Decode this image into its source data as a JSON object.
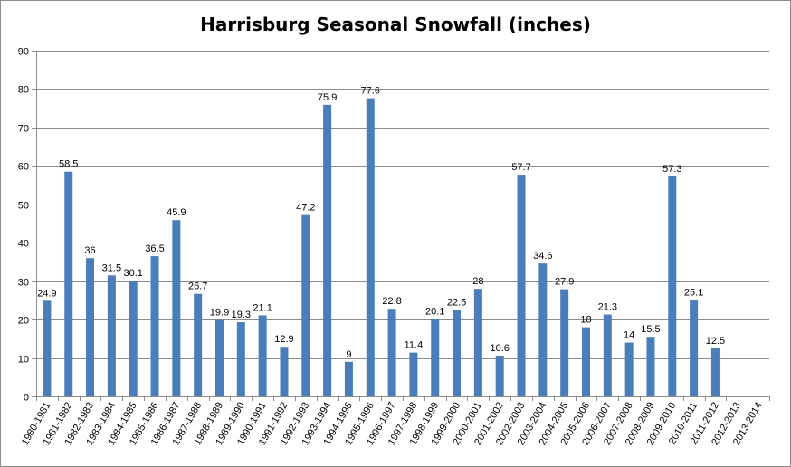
{
  "chart_data": {
    "type": "bar",
    "title": "Harrisburg Seasonal Snowfall (inches)",
    "xlabel": "",
    "ylabel": "",
    "ylim": [
      0,
      90
    ],
    "yticks": [
      0,
      10,
      20,
      30,
      40,
      50,
      60,
      70,
      80,
      90
    ],
    "grid": true,
    "legend": "none",
    "bar_color": "#4a7ebb",
    "categories": [
      "1980-1981",
      "1981-1982",
      "1982-1983",
      "1983-1984",
      "1984-1985",
      "1985-1986",
      "1986-1987",
      "1987-1988",
      "1988-1989",
      "1989-1990",
      "1990-1991",
      "1991-1992",
      "1992-1993",
      "1993-1994",
      "1994-1995",
      "1995-1996",
      "1996-1997",
      "1997-1998",
      "1998-1999",
      "1999-2000",
      "2000-2001",
      "2001-2002",
      "2002-2003",
      "2003-2004",
      "2004-2005",
      "2005-2006",
      "2006-2007",
      "2007-2008",
      "2008-2009",
      "2009-2010",
      "2010-2011",
      "2011-2012",
      "2012-2013",
      "2013-2014"
    ],
    "values": [
      24.9,
      58.5,
      36,
      31.5,
      30.1,
      36.5,
      45.9,
      26.7,
      19.9,
      19.3,
      21.1,
      12.9,
      47.2,
      75.9,
      9,
      77.6,
      22.8,
      11.4,
      20.1,
      22.5,
      28,
      10.6,
      57.7,
      34.6,
      27.9,
      18,
      21.3,
      14,
      15.5,
      57.3,
      25.1,
      12.5,
      null,
      null
    ],
    "labels": [
      "24.9",
      "58.5",
      "36",
      "31.5",
      "30.1",
      "36.5",
      "45.9",
      "26.7",
      "19.9",
      "19.3",
      "21.1",
      "12.9",
      "47.2",
      "75.9",
      "9",
      "77.6",
      "22.8",
      "11.4",
      "20.1",
      "22.5",
      "28",
      "10.6",
      "57.7",
      "34.6",
      "27.9",
      "18",
      "21.3",
      "14",
      "15.5",
      "57.3",
      "25.1",
      "12.5",
      "",
      ""
    ]
  }
}
